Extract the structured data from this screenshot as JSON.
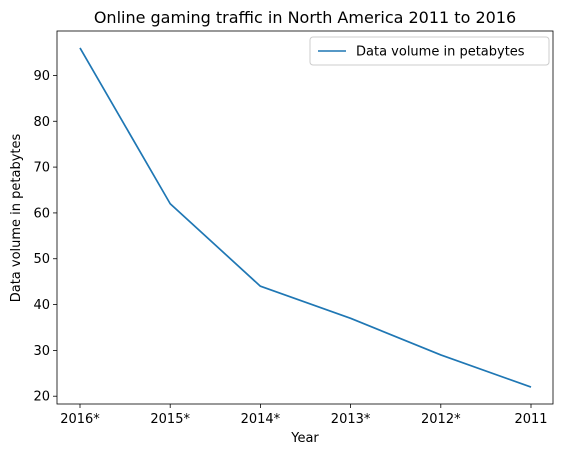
{
  "chart_data": {
    "type": "line",
    "title": "Online gaming traffic in North America 2011 to 2016",
    "xlabel": "Year",
    "ylabel": "Data volume in petabytes",
    "categories": [
      "2016*",
      "2015*",
      "2014*",
      "2013*",
      "2012*",
      "2011"
    ],
    "series": [
      {
        "name": "Data volume in petabytes",
        "values": [
          96,
          62,
          44,
          37,
          29,
          22
        ]
      }
    ],
    "ylim": [
      18.3,
      99.7
    ],
    "yticks": [
      20,
      30,
      40,
      50,
      60,
      70,
      80,
      90
    ],
    "grid": false,
    "legend_position": "top-right",
    "colors": {
      "series": "#1f77b4",
      "axes": "#000000",
      "background": "#ffffff"
    }
  }
}
